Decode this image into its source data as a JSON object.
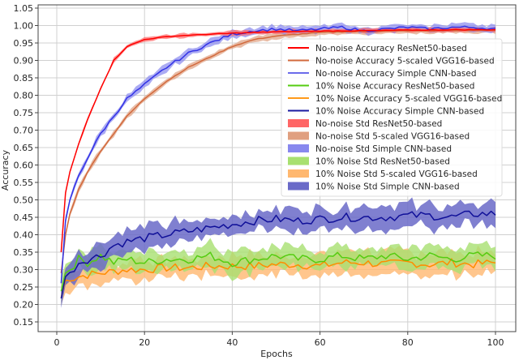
{
  "chart_data": {
    "type": "line",
    "title": "",
    "xlabel": "Epochs",
    "ylabel": "Accuracy",
    "xlim": [
      -4.5,
      104.5
    ],
    "ylim": [
      0.125,
      1.05
    ],
    "grid": true,
    "legend_position": "upper right (inside, below top)",
    "x_ticks": [
      0,
      20,
      40,
      60,
      80,
      100
    ],
    "x_tick_labels": [
      "0",
      "20",
      "40",
      "60",
      "80",
      "100"
    ],
    "y_ticks": [
      0.15,
      0.2,
      0.25,
      0.3,
      0.35,
      0.4,
      0.45,
      0.5,
      0.55,
      0.6,
      0.65,
      0.7,
      0.75,
      0.8,
      0.85,
      0.9,
      0.95,
      1.0,
      1.05
    ],
    "y_tick_labels": [
      "0.15",
      "0.20",
      "0.25",
      "0.30",
      "0.35",
      "0.40",
      "0.45",
      "0.50",
      "0.55",
      "0.60",
      "0.65",
      "0.70",
      "0.75",
      "0.80",
      "0.85",
      "0.90",
      "0.95",
      "1.00",
      "1.05"
    ],
    "x": [
      1,
      2,
      3,
      5,
      7,
      10,
      13,
      16,
      20,
      25,
      30,
      35,
      40,
      45,
      50,
      55,
      60,
      65,
      70,
      75,
      80,
      85,
      90,
      95,
      100
    ],
    "series": [
      {
        "name": "No-noise Accuracy ResNet50-based",
        "color": "#ff0000",
        "std": 0.006,
        "values": [
          0.35,
          0.52,
          0.58,
          0.66,
          0.73,
          0.82,
          0.9,
          0.94,
          0.96,
          0.968,
          0.972,
          0.975,
          0.978,
          0.98,
          0.982,
          0.983,
          0.984,
          0.985,
          0.985,
          0.986,
          0.987,
          0.987,
          0.988,
          0.988,
          0.988
        ]
      },
      {
        "name": "No-noise Accuracy 5-scaled VGG16-based",
        "color": "#d2693c",
        "std": 0.008,
        "values": [
          0.29,
          0.4,
          0.46,
          0.53,
          0.58,
          0.64,
          0.69,
          0.74,
          0.79,
          0.84,
          0.88,
          0.91,
          0.94,
          0.96,
          0.97,
          0.975,
          0.98,
          0.982,
          0.983,
          0.984,
          0.985,
          0.985,
          0.986,
          0.986,
          0.987
        ]
      },
      {
        "name": "No-noise Accuracy Simple CNN-based",
        "color": "#3232e6",
        "std": 0.01,
        "values": [
          0.26,
          0.44,
          0.5,
          0.57,
          0.62,
          0.69,
          0.74,
          0.79,
          0.83,
          0.88,
          0.92,
          0.95,
          0.975,
          0.985,
          0.99,
          0.985,
          0.99,
          0.995,
          0.985,
          0.99,
          0.995,
          0.99,
          0.995,
          0.995,
          0.99
        ]
      },
      {
        "name": "10% Noise Accuracy ResNet50-based",
        "color": "#55cc11",
        "std": 0.03,
        "values": [
          0.24,
          0.29,
          0.3,
          0.33,
          0.32,
          0.34,
          0.32,
          0.33,
          0.32,
          0.33,
          0.33,
          0.34,
          0.32,
          0.33,
          0.34,
          0.33,
          0.33,
          0.34,
          0.33,
          0.34,
          0.33,
          0.34,
          0.33,
          0.34,
          0.34
        ]
      },
      {
        "name": "10% Noise Accuracy 5-scaled VGG16-based",
        "color": "#ff8c00",
        "std": 0.03,
        "values": [
          0.22,
          0.27,
          0.27,
          0.28,
          0.285,
          0.29,
          0.295,
          0.3,
          0.3,
          0.305,
          0.305,
          0.31,
          0.31,
          0.31,
          0.315,
          0.315,
          0.31,
          0.32,
          0.32,
          0.315,
          0.32,
          0.315,
          0.32,
          0.315,
          0.32
        ]
      },
      {
        "name": "10% Noise Accuracy Simple CNN-based",
        "color": "#101099",
        "std": 0.03,
        "values": [
          0.22,
          0.28,
          0.29,
          0.32,
          0.33,
          0.34,
          0.37,
          0.38,
          0.39,
          0.4,
          0.41,
          0.42,
          0.43,
          0.44,
          0.445,
          0.44,
          0.445,
          0.45,
          0.45,
          0.45,
          0.455,
          0.455,
          0.45,
          0.46,
          0.46
        ]
      }
    ],
    "legend": [
      {
        "label": "No-noise Accuracy ResNet50-based",
        "kind": "line",
        "color": "#ff0000"
      },
      {
        "label": "No-noise Accuracy 5-scaled VGG16-based",
        "kind": "line",
        "color": "#d2693c"
      },
      {
        "label": "No-noise Accuracy Simple CNN-based",
        "kind": "line",
        "color": "#6b6bea"
      },
      {
        "label": "10% Noise Accuracy ResNet50-based",
        "kind": "line",
        "color": "#55cc11"
      },
      {
        "label": "10% Noise Accuracy 5-scaled VGG16-based",
        "kind": "line",
        "color": "#ff9a1a"
      },
      {
        "label": "10% Noise Accuracy Simple CNN-based",
        "kind": "line",
        "color": "#1a1aa0"
      },
      {
        "label": "No-noise Std ResNet50-based",
        "kind": "patch",
        "color": "#ff6666"
      },
      {
        "label": "No-noise Std 5-scaled VGG16-based",
        "kind": "patch",
        "color": "#e0a080"
      },
      {
        "label": "No-noise Std Simple CNN-based",
        "kind": "patch",
        "color": "#8888ee"
      },
      {
        "label": "10% Noise Std ResNet50-based",
        "kind": "patch",
        "color": "#a8e070"
      },
      {
        "label": "10% Noise Std 5-scaled VGG16-based",
        "kind": "patch",
        "color": "#ffb870"
      },
      {
        "label": "10% Noise Std Simple CNN-based",
        "kind": "patch",
        "color": "#6a6ac8"
      }
    ]
  }
}
